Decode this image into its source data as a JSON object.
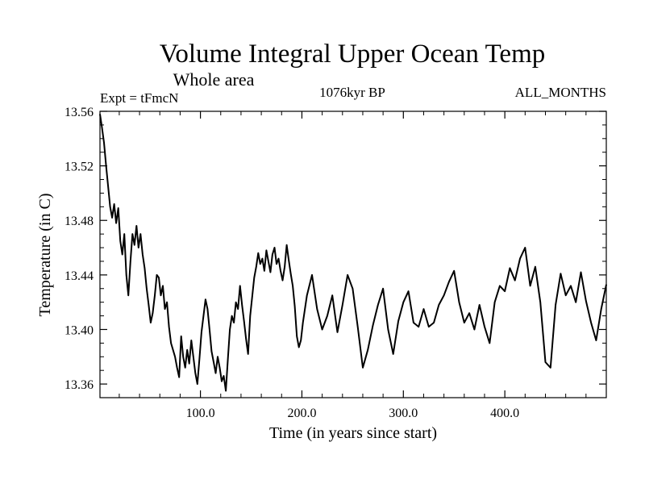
{
  "chart_data": {
    "type": "line",
    "title": "Volume Integral Upper Ocean Temp",
    "subtitle": "Whole area",
    "expt_label": "Expt = tFmcN",
    "period_label": "1076kyr BP",
    "months_label": "ALL_MONTHS",
    "xlabel": "Time (in years since start)",
    "ylabel": "Temperature (in C)",
    "xlim": [
      1,
      500
    ],
    "ylim": [
      13.35,
      13.56
    ],
    "x_ticks": [
      {
        "value": 100,
        "label": "100.0"
      },
      {
        "value": 200,
        "label": "200.0"
      },
      {
        "value": 300,
        "label": "300.0"
      },
      {
        "value": 400,
        "label": "400.0"
      }
    ],
    "y_ticks": [
      {
        "value": 13.36,
        "label": "13.36"
      },
      {
        "value": 13.4,
        "label": "13.40"
      },
      {
        "value": 13.44,
        "label": "13.44"
      },
      {
        "value": 13.48,
        "label": "13.48"
      },
      {
        "value": 13.52,
        "label": "13.52"
      },
      {
        "value": 13.56,
        "label": "13.56"
      }
    ],
    "series": [
      {
        "name": "Temperature",
        "x": [
          1,
          3,
          5,
          7,
          9,
          11,
          13,
          15,
          17,
          19,
          21,
          23,
          25,
          27,
          29,
          31,
          33,
          35,
          37,
          39,
          41,
          43,
          45,
          47,
          49,
          51,
          53,
          55,
          57,
          59,
          61,
          63,
          65,
          67,
          69,
          71,
          73,
          75,
          77,
          79,
          81,
          83,
          85,
          87,
          89,
          91,
          93,
          95,
          97,
          99,
          101,
          103,
          105,
          107,
          109,
          111,
          113,
          115,
          117,
          119,
          121,
          123,
          125,
          127,
          129,
          131,
          133,
          135,
          137,
          139,
          141,
          143,
          145,
          147,
          149,
          151,
          153,
          155,
          157,
          159,
          161,
          163,
          165,
          167,
          169,
          171,
          173,
          175,
          177,
          179,
          181,
          183,
          185,
          187,
          189,
          191,
          193,
          195,
          197,
          199,
          201,
          205,
          210,
          215,
          220,
          225,
          230,
          235,
          240,
          245,
          250,
          255,
          260,
          265,
          270,
          275,
          280,
          285,
          290,
          295,
          300,
          305,
          310,
          315,
          320,
          325,
          330,
          335,
          340,
          345,
          350,
          355,
          360,
          365,
          370,
          375,
          380,
          385,
          390,
          395,
          400,
          405,
          410,
          415,
          420,
          425,
          430,
          435,
          440,
          445,
          450,
          455,
          460,
          465,
          470,
          475,
          480,
          485,
          490,
          495,
          500
        ],
        "values": [
          13.558,
          13.548,
          13.537,
          13.52,
          13.505,
          13.49,
          13.482,
          13.492,
          13.478,
          13.489,
          13.465,
          13.455,
          13.47,
          13.44,
          13.425,
          13.45,
          13.47,
          13.462,
          13.476,
          13.46,
          13.47,
          13.455,
          13.445,
          13.43,
          13.418,
          13.405,
          13.412,
          13.425,
          13.44,
          13.438,
          13.425,
          13.432,
          13.415,
          13.42,
          13.402,
          13.39,
          13.385,
          13.38,
          13.372,
          13.365,
          13.395,
          13.38,
          13.372,
          13.385,
          13.375,
          13.392,
          13.38,
          13.368,
          13.36,
          13.378,
          13.398,
          13.41,
          13.422,
          13.415,
          13.4,
          13.384,
          13.376,
          13.368,
          13.38,
          13.372,
          13.362,
          13.366,
          13.355,
          13.378,
          13.4,
          13.41,
          13.405,
          13.42,
          13.415,
          13.432,
          13.418,
          13.406,
          13.393,
          13.382,
          13.41,
          13.424,
          13.438,
          13.446,
          13.456,
          13.448,
          13.452,
          13.443,
          13.458,
          13.45,
          13.442,
          13.455,
          13.46,
          13.448,
          13.452,
          13.443,
          13.436,
          13.446,
          13.462,
          13.451,
          13.441,
          13.432,
          13.417,
          13.395,
          13.387,
          13.392,
          13.405,
          13.425,
          13.44,
          13.415,
          13.4,
          13.41,
          13.425,
          13.398,
          13.418,
          13.44,
          13.43,
          13.402,
          13.372,
          13.385,
          13.403,
          13.418,
          13.43,
          13.4,
          13.382,
          13.406,
          13.42,
          13.428,
          13.405,
          13.402,
          13.415,
          13.402,
          13.405,
          13.418,
          13.425,
          13.435,
          13.443,
          13.42,
          13.405,
          13.412,
          13.4,
          13.418,
          13.402,
          13.39,
          13.42,
          13.432,
          13.428,
          13.445,
          13.436,
          13.452,
          13.46,
          13.432,
          13.446,
          13.42,
          13.376,
          13.372,
          13.418,
          13.441,
          13.425,
          13.432,
          13.42,
          13.442,
          13.421,
          13.405,
          13.392,
          13.415,
          13.433
        ]
      }
    ]
  }
}
